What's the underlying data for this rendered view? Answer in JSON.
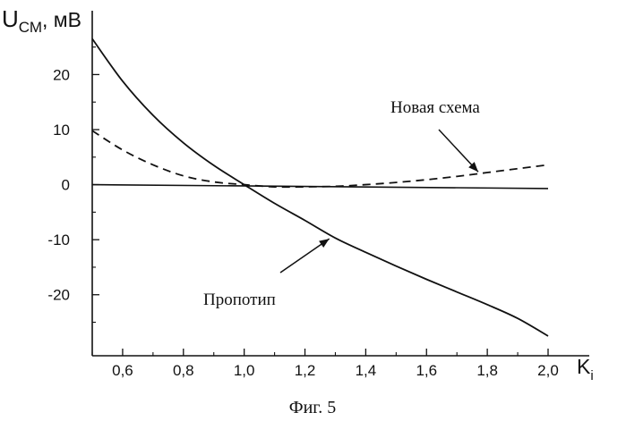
{
  "caption": "Фиг. 5",
  "chart_data": {
    "type": "line",
    "title": "",
    "ylabel": {
      "main": "U",
      "sub": "СМ",
      "unit": ", мВ"
    },
    "xlabel": {
      "main": "K",
      "sub": "i"
    },
    "xlim": [
      0.5,
      2.0
    ],
    "ylim": [
      -28,
      29
    ],
    "xticks": [
      0.6,
      0.8,
      1.0,
      1.2,
      1.4,
      1.6,
      1.8,
      2.0
    ],
    "xtick_labels": [
      "0,6",
      "0,8",
      "1,0",
      "1,2",
      "1,4",
      "1,6",
      "1,8",
      "2,0"
    ],
    "yticks": [
      20,
      10,
      0,
      -10,
      -20
    ],
    "ytick_labels": [
      "20",
      "10",
      "0",
      "-10",
      "-20"
    ],
    "grid": false,
    "series": [
      {
        "style": "solid",
        "x": [
          0.5,
          0.6,
          0.7,
          0.8,
          0.9,
          1.0,
          1.1,
          1.2,
          1.3,
          1.4,
          1.5,
          1.6,
          1.7,
          1.8,
          1.9,
          2.0
        ],
        "y": [
          26.5,
          18.8,
          12.6,
          7.6,
          3.5,
          0.0,
          -3.4,
          -6.5,
          -9.7,
          -12.3,
          -14.8,
          -17.2,
          -19.5,
          -21.8,
          -24.3,
          -27.5
        ]
      },
      {
        "style": "dashed",
        "x": [
          0.5,
          0.6,
          0.7,
          0.8,
          0.9,
          1.0,
          1.1,
          1.2,
          1.3,
          1.4,
          1.5,
          1.6,
          1.7,
          1.8,
          1.9,
          2.0
        ],
        "y": [
          9.8,
          6.3,
          3.6,
          1.6,
          0.5,
          0.0,
          -0.4,
          -0.4,
          -0.3,
          0.0,
          0.4,
          0.9,
          1.5,
          2.2,
          2.9,
          3.6
        ]
      },
      {
        "style": "solid-thin",
        "x": [
          0.5,
          2.0
        ],
        "y": [
          0.0,
          -0.7
        ]
      }
    ],
    "annotations": [
      {
        "text": "Новая схема",
        "arrow_to": [
          1.77,
          2.0
        ]
      },
      {
        "text": "Пропотип",
        "arrow_to": [
          1.28,
          -9.5
        ]
      }
    ]
  }
}
